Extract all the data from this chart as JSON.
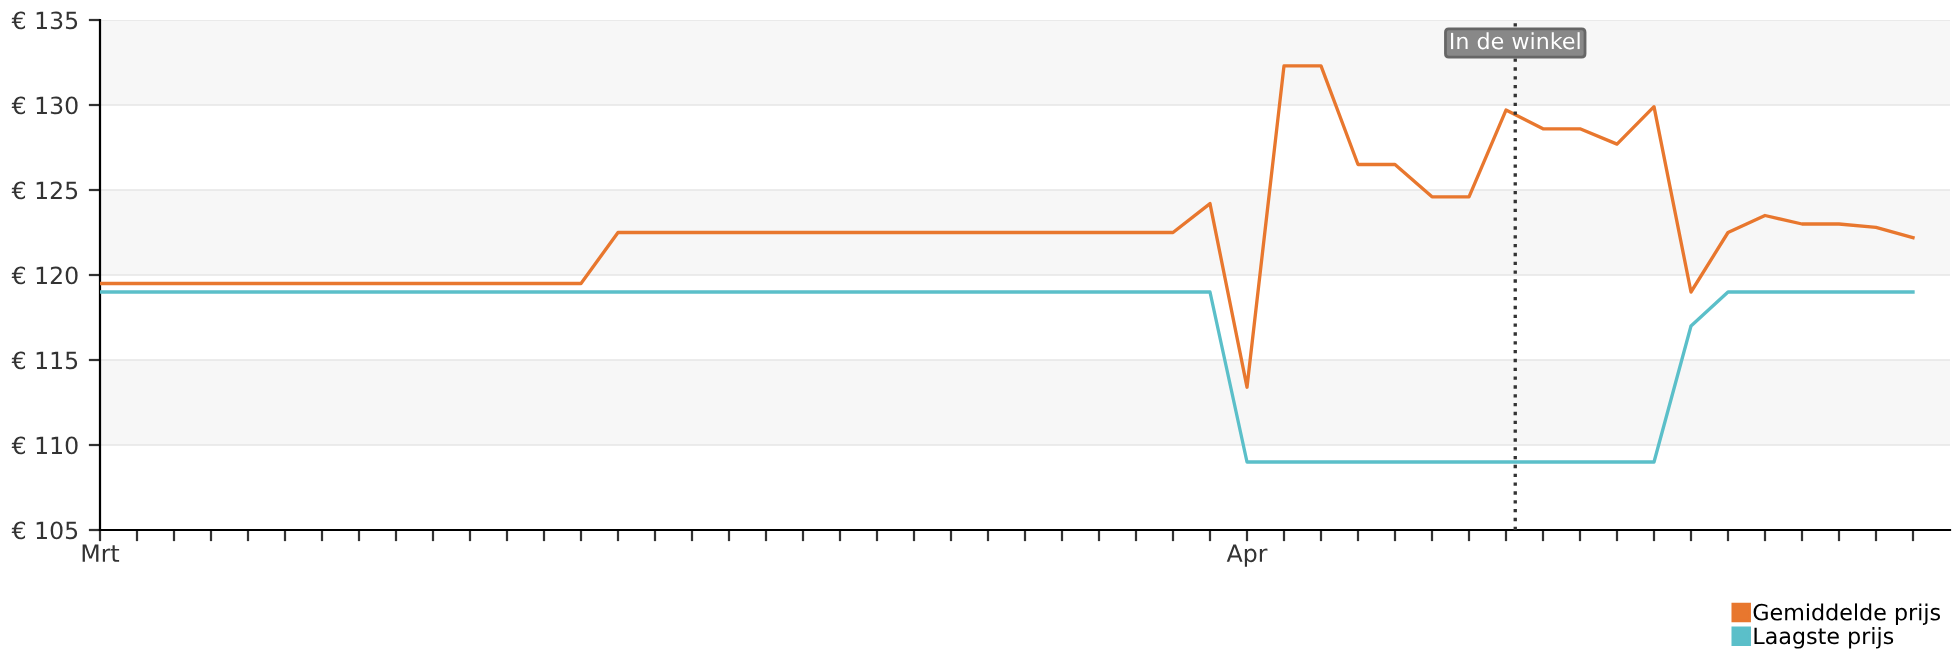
{
  "chart_data": {
    "type": "line",
    "categories": [
      "Mrt",
      null,
      null,
      null,
      null,
      null,
      null,
      null,
      null,
      null,
      null,
      null,
      null,
      null,
      null,
      null,
      null,
      null,
      null,
      null,
      null,
      null,
      null,
      null,
      null,
      null,
      null,
      null,
      null,
      null,
      null,
      "Apr",
      null,
      null,
      null,
      null,
      null,
      null,
      null,
      null,
      null,
      null,
      null,
      null,
      null,
      null,
      null,
      null,
      null,
      null
    ],
    "series": [
      {
        "name": "Gemiddelde prijs",
        "color": "#e8772e",
        "values": [
          119.5,
          119.5,
          119.5,
          119.5,
          119.5,
          119.5,
          119.5,
          119.5,
          119.5,
          119.5,
          119.5,
          119.5,
          119.5,
          119.5,
          122.5,
          122.5,
          122.5,
          122.5,
          122.5,
          122.5,
          122.5,
          122.5,
          122.5,
          122.5,
          122.5,
          122.5,
          122.5,
          122.5,
          122.5,
          122.5,
          124.2,
          113.4,
          132.3,
          132.3,
          126.5,
          126.5,
          124.6,
          124.6,
          129.7,
          128.6,
          128.6,
          127.7,
          129.9,
          119,
          122.5,
          123.5,
          123,
          123,
          122.8,
          122.2
        ]
      },
      {
        "name": "Laagste prijs",
        "color": "#5bbfc9",
        "values": [
          119,
          119,
          119,
          119,
          119,
          119,
          119,
          119,
          119,
          119,
          119,
          119,
          119,
          119,
          119,
          119,
          119,
          119,
          119,
          119,
          119,
          119,
          119,
          119,
          119,
          119,
          119,
          119,
          119,
          119,
          119,
          109,
          109,
          109,
          109,
          109,
          109,
          109,
          109,
          109,
          109,
          109,
          109,
          117,
          119,
          119,
          119,
          119,
          119,
          119
        ]
      }
    ],
    "ylim": [
      105,
      135
    ],
    "yticks": [
      {
        "value": 105,
        "label": "€ 105"
      },
      {
        "value": 110,
        "label": "€ 110"
      },
      {
        "value": 115,
        "label": "€ 115"
      },
      {
        "value": 120,
        "label": "€ 120"
      },
      {
        "value": 125,
        "label": "€ 125"
      },
      {
        "value": 130,
        "label": "€ 130"
      },
      {
        "value": 135,
        "label": "€ 135"
      }
    ],
    "annotations": [
      "In de winkel"
    ],
    "grid": "y",
    "legend": "bottom right",
    "marker": "none",
    "line_style": "solid"
  }
}
